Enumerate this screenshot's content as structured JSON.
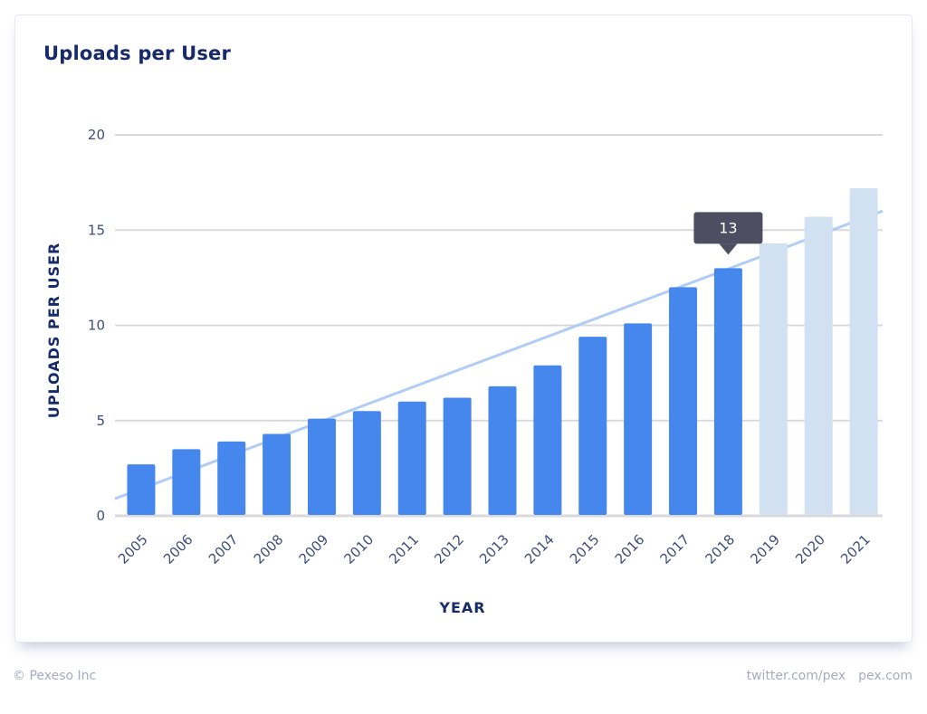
{
  "card": {
    "title": "Uploads per User"
  },
  "footer": {
    "copyright": "© Pexeso Inc",
    "links": [
      "twitter.com/pex",
      "pex.com"
    ]
  },
  "colors": {
    "actual_bar": "#4687ee",
    "projected_bar": "#d2e1f2",
    "trend_line": "#a9c8f7",
    "gridline": "#d9d9dc",
    "tooltip_bg": "#4d4e61",
    "axis_text": "#3e4d7e",
    "title_text": "#172b6b"
  },
  "tooltip": {
    "category": "2018",
    "label": "13"
  },
  "chart_data": {
    "type": "bar",
    "title": "Uploads per User",
    "xlabel": "YEAR",
    "ylabel": "UPLOADS PER USER",
    "ylim": [
      0,
      20
    ],
    "yticks": [
      0,
      5,
      10,
      15,
      20
    ],
    "grid": true,
    "categories": [
      "2005",
      "2006",
      "2007",
      "2008",
      "2009",
      "2010",
      "2011",
      "2012",
      "2013",
      "2014",
      "2015",
      "2016",
      "2017",
      "2018",
      "2019",
      "2020",
      "2021"
    ],
    "series": [
      {
        "name": "Uploads per User",
        "values": [
          2.7,
          3.5,
          3.9,
          4.3,
          5.1,
          5.5,
          6.0,
          6.2,
          6.8,
          7.9,
          9.4,
          10.1,
          12.0,
          13.0,
          14.3,
          15.7,
          17.2
        ],
        "projected_from": "2019"
      }
    ],
    "trendline": {
      "type": "linear",
      "start_value": 0.9,
      "end_value": 16.0
    }
  }
}
